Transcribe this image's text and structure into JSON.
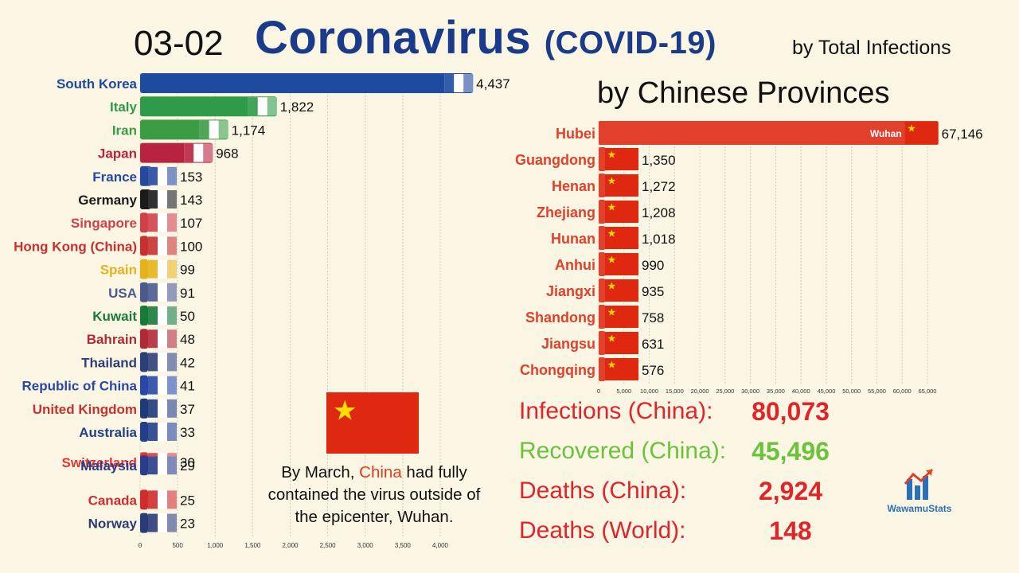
{
  "header": {
    "date": "03-02",
    "title_main": "Coronavirus",
    "title_suffix": "(COVID-19)",
    "subtitle": "by Total Infections",
    "right_title": "by Chinese Provinces"
  },
  "chart_data": [
    {
      "type": "bar",
      "orientation": "horizontal",
      "categories": [
        "South Korea",
        "Italy",
        "Iran",
        "Japan",
        "France",
        "Germany",
        "Singapore",
        "Hong Kong (China)",
        "Spain",
        "USA",
        "Kuwait",
        "Bahrain",
        "Thailand",
        "Republic of China",
        "United Kingdom",
        "Australia",
        "Switzerland",
        "Malaysia",
        "Canada",
        "Norway"
      ],
      "values": [
        4437,
        1822,
        1174,
        968,
        153,
        143,
        107,
        100,
        99,
        91,
        50,
        48,
        42,
        41,
        37,
        33,
        30,
        29,
        25,
        23
      ],
      "value_labels": [
        "4,437",
        "1,822",
        "1,174",
        "968",
        "153",
        "143",
        "107",
        "100",
        "99",
        "91",
        "50",
        "48",
        "42",
        "41",
        "37",
        "33",
        "30",
        "29",
        "25",
        "23"
      ],
      "colors": [
        "#1e4aa0",
        "#2e9b48",
        "#3c9c44",
        "#b8243f",
        "#26489e",
        "#1b1b1b",
        "#d04048",
        "#c8302e",
        "#e5b21a",
        "#4a5a8c",
        "#187a3a",
        "#b02a36",
        "#2d3f78",
        "#2848a6",
        "#1f3a7a",
        "#223f8a",
        "#e63535",
        "#2a3c8a",
        "#cf2c2c",
        "#2a3c78"
      ],
      "label_colors": [
        "#1e4aa0",
        "#2e9b48",
        "#3c9c44",
        "#b8243f",
        "#26489e",
        "#1b1b1b",
        "#d04048",
        "#c8302e",
        "#e5b21a",
        "#4a5a8c",
        "#187a3a",
        "#b02a36",
        "#2d3f78",
        "#2848a6",
        "#c8302e",
        "#223f8a",
        "#e63535",
        "#2a3c8a",
        "#cf2c2c",
        "#2a3c78"
      ],
      "xticks": [
        "0",
        "500",
        "1,000",
        "1,500",
        "2,000",
        "2,500",
        "3,000",
        "3,500",
        "4,000"
      ],
      "xlim": [
        0,
        4500
      ],
      "grid": true
    },
    {
      "type": "bar",
      "orientation": "horizontal",
      "categories": [
        "Hubei",
        "Guangdong",
        "Henan",
        "Zhejiang",
        "Hunan",
        "Anhui",
        "Jiangxi",
        "Shandong",
        "Jiangsu",
        "Chongqing"
      ],
      "values": [
        67146,
        1350,
        1272,
        1208,
        1018,
        990,
        935,
        758,
        631,
        576
      ],
      "value_labels": [
        "67,146",
        "1,350",
        "1,272",
        "1,208",
        "1,018",
        "990",
        "935",
        "758",
        "631",
        "576"
      ],
      "bar_inner_label": "Wuhan",
      "bar_color": "#e0402c",
      "label_color": "#e0402c",
      "xticks": [
        "0",
        "5,000",
        "10,000",
        "15,000",
        "20,000",
        "25,000",
        "30,000",
        "35,000",
        "40,000",
        "45,000",
        "50,000",
        "55,000",
        "60,000",
        "65,000"
      ],
      "xlim": [
        0,
        70000
      ],
      "grid": true
    }
  ],
  "stats": [
    {
      "label": "Infections (China):",
      "value": "80,073",
      "color": "#e0252a"
    },
    {
      "label": "Recovered (China):",
      "value": "45,496",
      "color": "#6ac33a"
    },
    {
      "label": "Deaths (China):",
      "value": "2,924",
      "color": "#e0252a"
    },
    {
      "label": "Deaths (World):",
      "value": "148",
      "color": "#e0252a"
    }
  ],
  "note": {
    "before": "By March, ",
    "highlight": "China",
    "after": " had fully contained the virus outside of the epicenter, Wuhan."
  },
  "logo": {
    "text": "WawamuStats"
  },
  "colors": {
    "background": "#fbf6e4",
    "title": "#1a3a8a",
    "china_red": "#de2910",
    "china_star": "#ffde00"
  }
}
